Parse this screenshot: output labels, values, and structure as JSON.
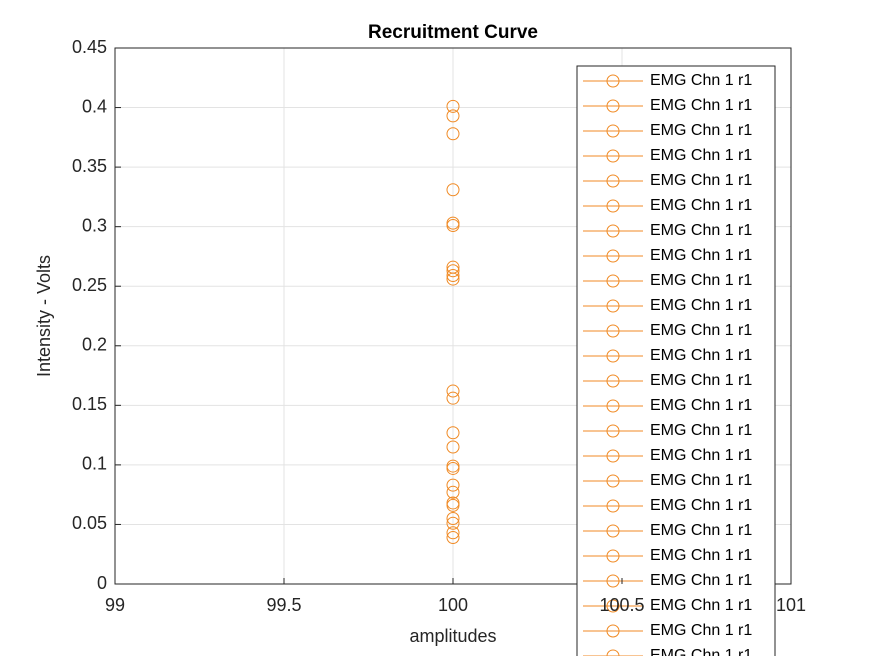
{
  "chart_data": {
    "type": "line",
    "title": "Recruitment Curve",
    "x_label": "amplitudes",
    "y_label": "Intensity - Volts",
    "x": [
      100
    ],
    "series": [
      {
        "name": "EMG Chn 1 r1",
        "color": "#f08a24",
        "values": [
          0.401
        ]
      },
      {
        "name": "EMG Chn 1 r1",
        "color": "#f08a24",
        "values": [
          0.393
        ]
      },
      {
        "name": "EMG Chn 1 r1",
        "color": "#f08a24",
        "values": [
          0.378
        ]
      },
      {
        "name": "EMG Chn 1 r1",
        "color": "#f08a24",
        "values": [
          0.331
        ]
      },
      {
        "name": "EMG Chn 1 r1",
        "color": "#f08a24",
        "values": [
          0.303
        ]
      },
      {
        "name": "EMG Chn 1 r1",
        "color": "#f08a24",
        "values": [
          0.301
        ]
      },
      {
        "name": "EMG Chn 1 r1",
        "color": "#f08a24",
        "values": [
          0.266
        ]
      },
      {
        "name": "EMG Chn 1 r1",
        "color": "#f08a24",
        "values": [
          0.263
        ]
      },
      {
        "name": "EMG Chn 1 r1",
        "color": "#f08a24",
        "values": [
          0.259
        ]
      },
      {
        "name": "EMG Chn 1 r1",
        "color": "#f08a24",
        "values": [
          0.256
        ]
      },
      {
        "name": "EMG Chn 1 r1",
        "color": "#f08a24",
        "values": [
          0.162
        ]
      },
      {
        "name": "EMG Chn 1 r1",
        "color": "#f08a24",
        "values": [
          0.156
        ]
      },
      {
        "name": "EMG Chn 1 r1",
        "color": "#f08a24",
        "values": [
          0.127
        ]
      },
      {
        "name": "EMG Chn 1 r1",
        "color": "#f08a24",
        "values": [
          0.115
        ]
      },
      {
        "name": "EMG Chn 1 r1",
        "color": "#f08a24",
        "values": [
          0.099
        ]
      },
      {
        "name": "EMG Chn 1 r1",
        "color": "#f08a24",
        "values": [
          0.097
        ]
      },
      {
        "name": "EMG Chn 1 r1",
        "color": "#f08a24",
        "values": [
          0.083
        ]
      },
      {
        "name": "EMG Chn 1 r1",
        "color": "#f08a24",
        "values": [
          0.077
        ]
      },
      {
        "name": "EMG Chn 1 r1",
        "color": "#f08a24",
        "values": [
          0.068
        ]
      },
      {
        "name": "EMG Chn 1 r1",
        "color": "#f08a24",
        "values": [
          0.066
        ]
      },
      {
        "name": "EMG Chn 1 r1",
        "color": "#f08a24",
        "values": [
          0.055
        ]
      },
      {
        "name": "EMG Chn 1 r1",
        "color": "#f08a24",
        "values": [
          0.051
        ]
      },
      {
        "name": "EMG Chn 1 r1",
        "color": "#f08a24",
        "values": [
          0.043
        ]
      },
      {
        "name": "EMG Chn 1 r1",
        "color": "#f08a24",
        "values": [
          0.039
        ]
      }
    ],
    "xlim": [
      99,
      101
    ],
    "xticks": [
      99,
      99.5,
      100,
      100.5,
      101
    ],
    "ylim": [
      0,
      0.45
    ],
    "yticks": [
      0,
      0.05,
      0.1,
      0.15,
      0.2,
      0.25,
      0.3,
      0.35,
      0.4,
      0.45
    ],
    "grid": true,
    "legend": "northeast"
  }
}
